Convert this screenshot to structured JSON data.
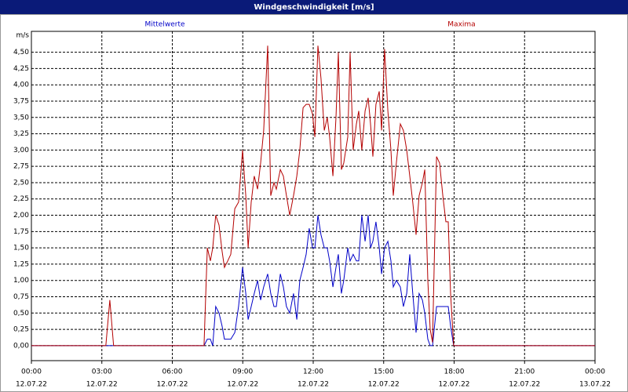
{
  "chart_data": {
    "type": "line",
    "title": "Windgeschwindigkeit [m/s]",
    "y_label": "m/s",
    "x": [
      0,
      3.17,
      3.34,
      3.5,
      7.35,
      7.49,
      7.62,
      7.72,
      7.85,
      7.99,
      8.12,
      8.22,
      8.36,
      8.49,
      8.66,
      8.82,
      8.99,
      9.13,
      9.23,
      9.36,
      9.49,
      9.63,
      9.76,
      9.89,
      10.06,
      10.19,
      10.33,
      10.43,
      10.6,
      10.73,
      10.86,
      11.0,
      11.16,
      11.3,
      11.43,
      11.57,
      11.7,
      11.83,
      11.97,
      12.07,
      12.2,
      12.33,
      12.47,
      12.6,
      12.7,
      12.84,
      12.97,
      13.07,
      13.2,
      13.3,
      13.47,
      13.57,
      13.7,
      13.84,
      13.94,
      14.07,
      14.21,
      14.34,
      14.44,
      14.54,
      14.67,
      14.81,
      14.91,
      15.04,
      15.18,
      15.31,
      15.41,
      15.54,
      15.71,
      15.84,
      15.98,
      16.11,
      16.24,
      16.38,
      16.51,
      16.65,
      16.75,
      16.88,
      16.98,
      17.08,
      17.25,
      17.38,
      17.52,
      17.65,
      17.75,
      17.85,
      17.98,
      24
    ],
    "series": [
      {
        "name": "Mittelwerte",
        "color": "#0000c8",
        "values": [
          0,
          0,
          0,
          0,
          0,
          0.1,
          0.1,
          0,
          0.6,
          0.5,
          0.3,
          0.1,
          0.1,
          0.1,
          0.2,
          0.6,
          1.2,
          0.8,
          0.4,
          0.6,
          0.8,
          1.0,
          0.7,
          0.9,
          1.1,
          0.8,
          0.6,
          0.6,
          1.1,
          0.9,
          0.6,
          0.5,
          0.8,
          0.4,
          1.0,
          1.2,
          1.4,
          1.8,
          1.5,
          1.5,
          2.0,
          1.7,
          1.5,
          1.5,
          1.3,
          0.9,
          1.2,
          1.4,
          0.8,
          1.0,
          1.5,
          1.3,
          1.4,
          1.3,
          1.3,
          2.0,
          1.6,
          2.0,
          1.5,
          1.6,
          1.9,
          1.5,
          1.1,
          1.5,
          1.6,
          1.3,
          0.9,
          1.0,
          0.9,
          0.6,
          0.8,
          1.4,
          0.8,
          0.2,
          0.8,
          0.7,
          0.5,
          0.1,
          0,
          0,
          0.6,
          0.6,
          0.6,
          0.6,
          0.6,
          0.3,
          0,
          0
        ]
      },
      {
        "name": "Maxima",
        "color": "#b40000",
        "values": [
          0,
          0,
          0.7,
          0,
          0,
          1.5,
          1.3,
          1.5,
          2.0,
          1.85,
          1.45,
          1.2,
          1.3,
          1.4,
          2.1,
          2.2,
          3.0,
          2.3,
          1.5,
          2.2,
          2.6,
          2.4,
          2.8,
          3.3,
          4.6,
          2.3,
          2.5,
          2.4,
          2.7,
          2.6,
          2.3,
          2.0,
          2.3,
          2.6,
          3.0,
          3.65,
          3.7,
          3.7,
          3.55,
          3.2,
          4.6,
          4.1,
          3.3,
          3.5,
          3.2,
          2.6,
          3.5,
          4.5,
          2.7,
          2.8,
          3.2,
          4.5,
          3.0,
          3.4,
          3.6,
          3.0,
          3.6,
          3.8,
          3.4,
          2.9,
          3.7,
          3.9,
          3.3,
          4.55,
          3.6,
          3.0,
          2.3,
          2.8,
          3.4,
          3.3,
          3.0,
          2.6,
          2.2,
          1.7,
          2.3,
          2.5,
          2.7,
          1.0,
          0.25,
          0.05,
          2.9,
          2.8,
          2.3,
          1.9,
          1.9,
          0.8,
          0,
          0
        ]
      }
    ],
    "xlim": [
      0,
      24
    ],
    "ylim": [
      -0.23,
      4.82
    ],
    "xticks": [
      {
        "value": 0,
        "label": "00:00",
        "date": "12.07.22"
      },
      {
        "value": 3,
        "label": "03:00",
        "date": "12.07.22"
      },
      {
        "value": 6,
        "label": "06:00",
        "date": "12.07.22"
      },
      {
        "value": 9,
        "label": "09:00",
        "date": "12.07.22"
      },
      {
        "value": 12,
        "label": "12:00",
        "date": "12.07.22"
      },
      {
        "value": 15,
        "label": "15:00",
        "date": "12.07.22"
      },
      {
        "value": 18,
        "label": "18:00",
        "date": "12.07.22"
      },
      {
        "value": 21,
        "label": "21:00",
        "date": "12.07.22"
      },
      {
        "value": 24,
        "label": "00:00",
        "date": "13.07.22"
      }
    ],
    "yticks": [
      {
        "value": 0,
        "label": "0,00"
      },
      {
        "value": 0.25,
        "label": "0,25"
      },
      {
        "value": 0.5,
        "label": "0,50"
      },
      {
        "value": 0.75,
        "label": "0,75"
      },
      {
        "value": 1,
        "label": "1,00"
      },
      {
        "value": 1.25,
        "label": "1,25"
      },
      {
        "value": 1.5,
        "label": "1,50"
      },
      {
        "value": 1.75,
        "label": "1,75"
      },
      {
        "value": 2,
        "label": "2,00"
      },
      {
        "value": 2.25,
        "label": "2,25"
      },
      {
        "value": 2.5,
        "label": "2,50"
      },
      {
        "value": 2.75,
        "label": "2,75"
      },
      {
        "value": 3,
        "label": "3,00"
      },
      {
        "value": 3.25,
        "label": "3,25"
      },
      {
        "value": 3.5,
        "label": "3,50"
      },
      {
        "value": 3.75,
        "label": "3,75"
      },
      {
        "value": 4,
        "label": "4,00"
      },
      {
        "value": 4.25,
        "label": "4,25"
      },
      {
        "value": 4.5,
        "label": "4,50"
      }
    ],
    "grid": true
  }
}
